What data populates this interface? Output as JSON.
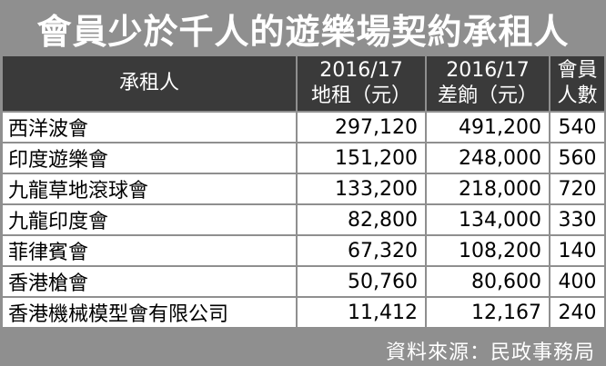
{
  "title": "會員少於千人的遊樂場契約承租人",
  "headers": {
    "tenant": "承租人",
    "rent_year": "2016/17",
    "rent_label": "地租（元）",
    "shortfall_year": "2016/17",
    "shortfall_label": "差餉（元）",
    "members_line1": "會員",
    "members_line2": "人數"
  },
  "rows": [
    {
      "name": "西洋波會",
      "rent": "297,120",
      "rates": "491,200",
      "members": "540"
    },
    {
      "name": "印度遊樂會",
      "rent": "151,200",
      "rates": "248,000",
      "members": "560"
    },
    {
      "name": "九龍草地滾球會",
      "rent": "133,200",
      "rates": "218,000",
      "members": "720"
    },
    {
      "name": "九龍印度會",
      "rent": "82,800",
      "rates": "134,000",
      "members": "330"
    },
    {
      "name": "菲律賓會",
      "rent": "67,320",
      "rates": "108,200",
      "members": "140"
    },
    {
      "name": "香港槍會",
      "rent": "50,760",
      "rates": "80,600",
      "members": "400"
    },
    {
      "name": "香港機械模型會有限公司",
      "rent": "11,412",
      "rates": "12,167",
      "members": "240"
    }
  ],
  "source": "資料來源：民政事務局"
}
